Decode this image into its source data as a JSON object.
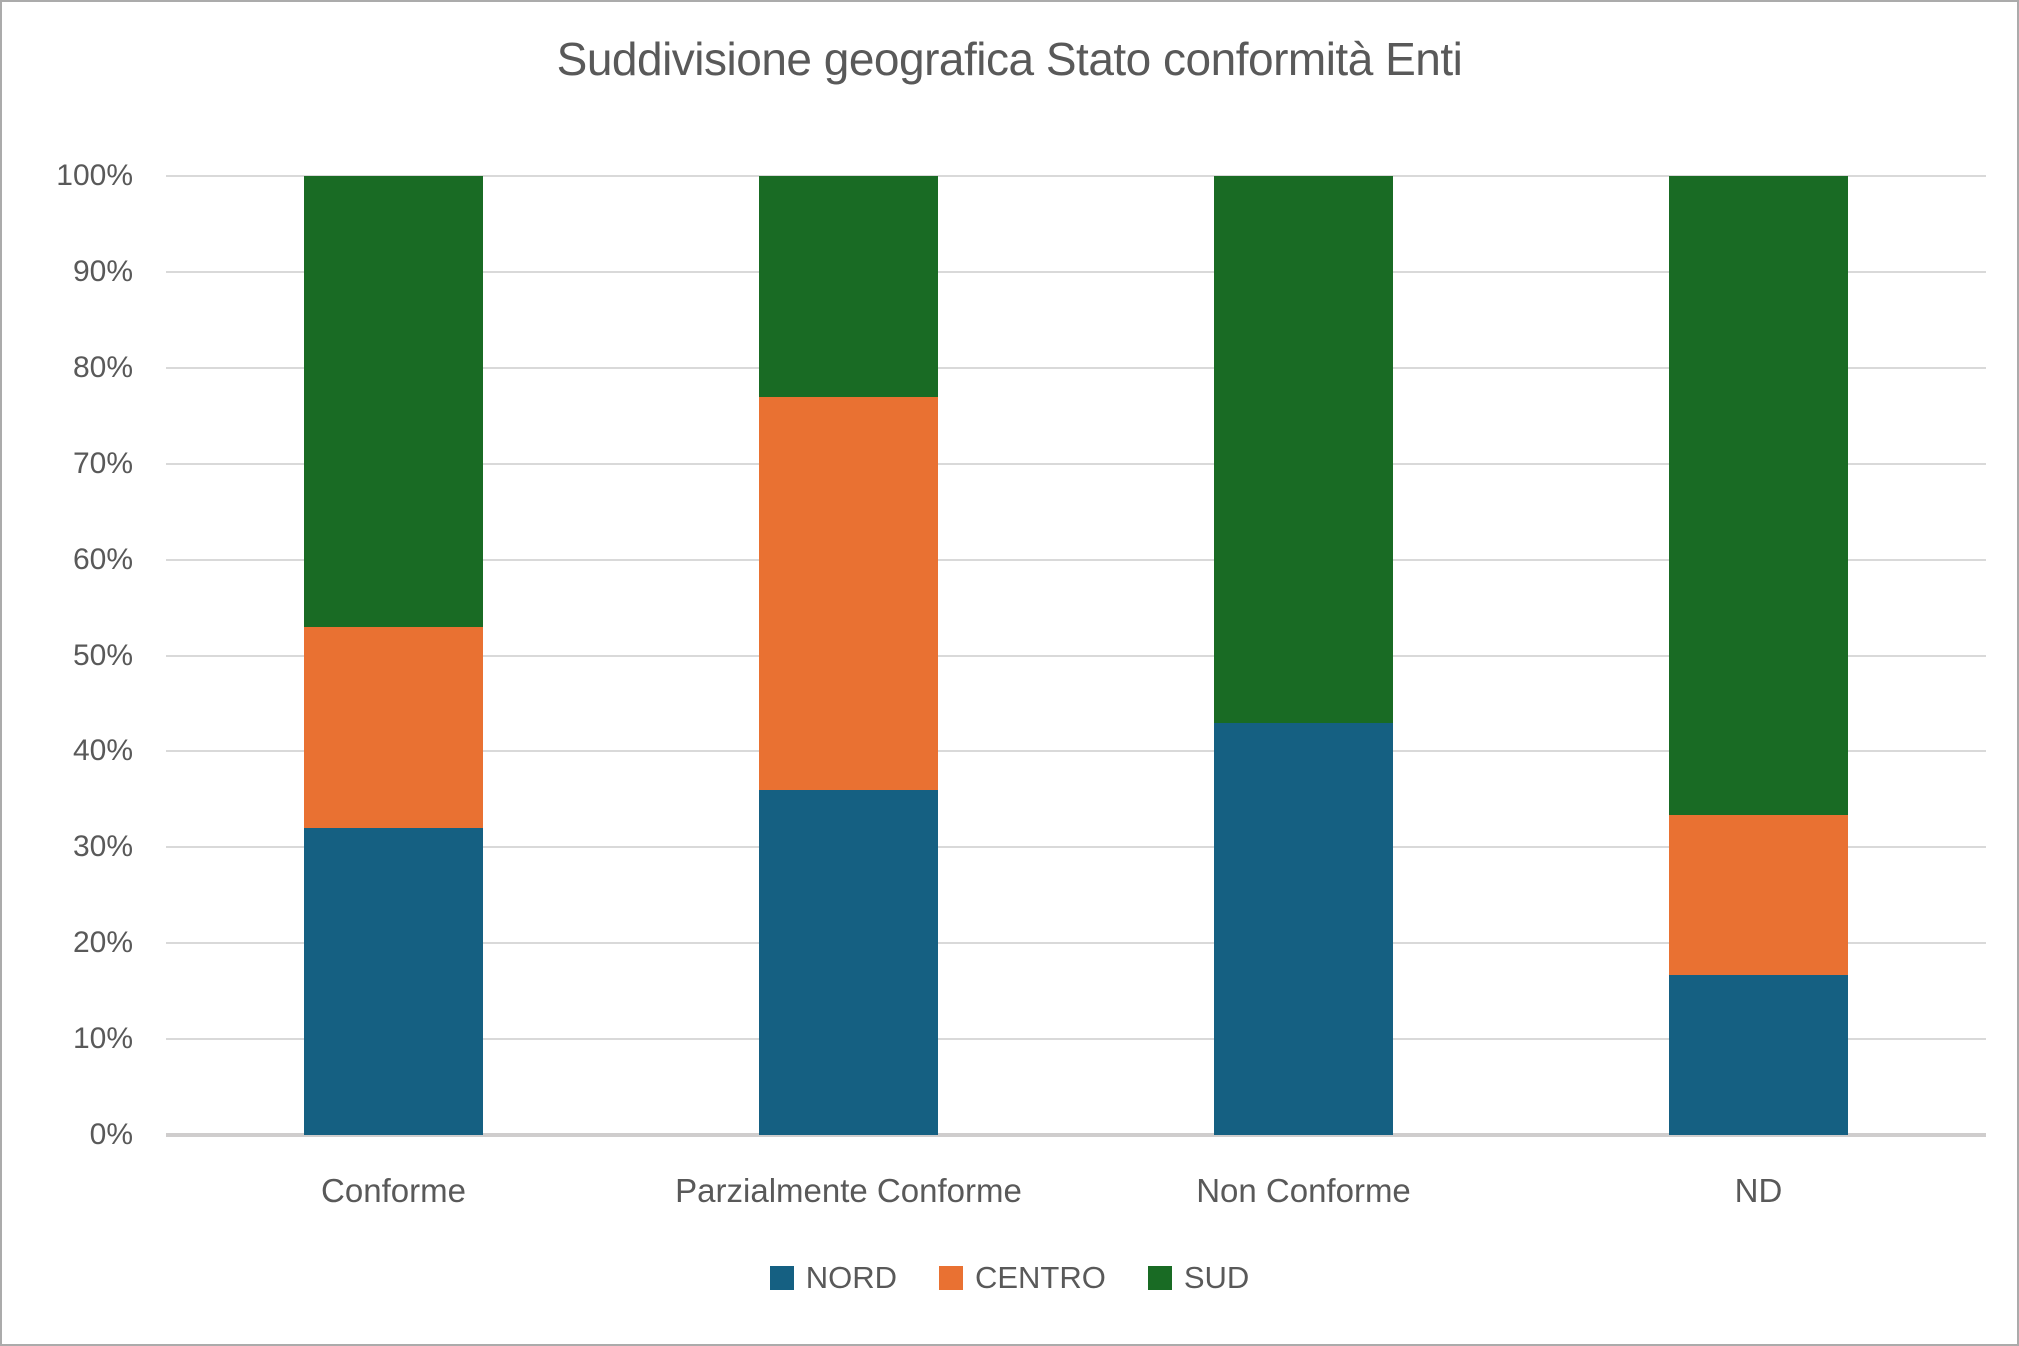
{
  "title": "Suddivisione geografica Stato conformità Enti",
  "colors": {
    "nord": "#156082",
    "centro": "#E97132",
    "sud": "#196B24",
    "title_text": "#595959",
    "axis_text": "#595959",
    "gridline": "#D9D9D9",
    "axis_line": "#CFCDCD",
    "canvas_border": "#ABABAB",
    "background": "#FFFFFF"
  },
  "chart_data": {
    "type": "bar",
    "subtype": "stacked-100-percent-column",
    "title": "Suddivisione geografica Stato conformità Enti",
    "categories": [
      "Conforme",
      "Parzialmente Conforme",
      "Non Conforme",
      "ND"
    ],
    "series": [
      {
        "name": "NORD",
        "color_key": "nord",
        "values": [
          32,
          36,
          43,
          16.67
        ]
      },
      {
        "name": "CENTRO",
        "color_key": "centro",
        "values": [
          21,
          41,
          0,
          16.67
        ]
      },
      {
        "name": "SUD",
        "color_key": "sud",
        "values": [
          47,
          23,
          57,
          66.66
        ]
      }
    ],
    "xlabel": "",
    "ylabel": "",
    "y_axis": {
      "min": 0,
      "max": 100,
      "tick_step": 10,
      "tick_labels": [
        "0%",
        "10%",
        "20%",
        "30%",
        "40%",
        "50%",
        "60%",
        "70%",
        "80%",
        "90%",
        "100%"
      ],
      "grid": true
    },
    "legend": {
      "position": "bottom",
      "entries": [
        "NORD",
        "CENTRO",
        "SUD"
      ]
    }
  }
}
